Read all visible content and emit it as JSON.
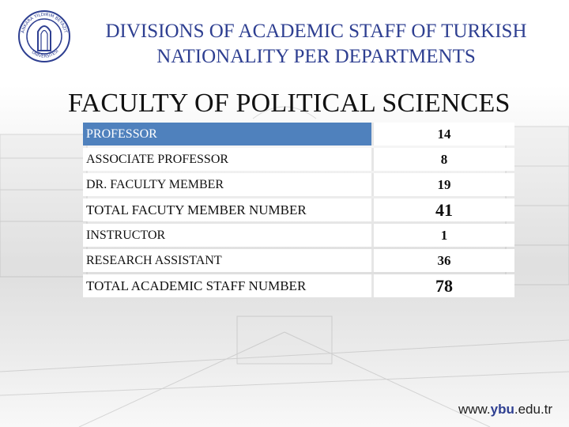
{
  "header": {
    "title_line1": "DIVISIONS OF ACADEMIC STAFF OF TURKISH",
    "title_line2": "NATIONALITY PER DEPARTMENTS",
    "subtitle": "FACULTY OF POLITICAL SCIENCES"
  },
  "logo": {
    "text_top": "ANKARA YILDIRIM BEYAZIT",
    "text_bottom": "ÜNİVERSİTESİ"
  },
  "table": {
    "rows": [
      {
        "label": "PROFESSOR",
        "value": "14"
      },
      {
        "label": "ASSOCIATE PROFESSOR",
        "value": "8"
      },
      {
        "label": "DR. FACULTY MEMBER",
        "value": "19"
      },
      {
        "label": "TOTAL FACUTY MEMBER NUMBER",
        "value": "41"
      },
      {
        "label": "INSTRUCTOR",
        "value": "1"
      },
      {
        "label": "RESEARCH ASSISTANT",
        "value": "36"
      },
      {
        "label": "TOTAL ACADEMIC STAFF NUMBER",
        "value": "78"
      }
    ]
  },
  "footer": {
    "url_prefix": "www.",
    "url_brand": "ybu",
    "url_suffix": ".edu.tr"
  },
  "colors": {
    "title": "#2e3f91",
    "header_row": "#4f81bd"
  }
}
